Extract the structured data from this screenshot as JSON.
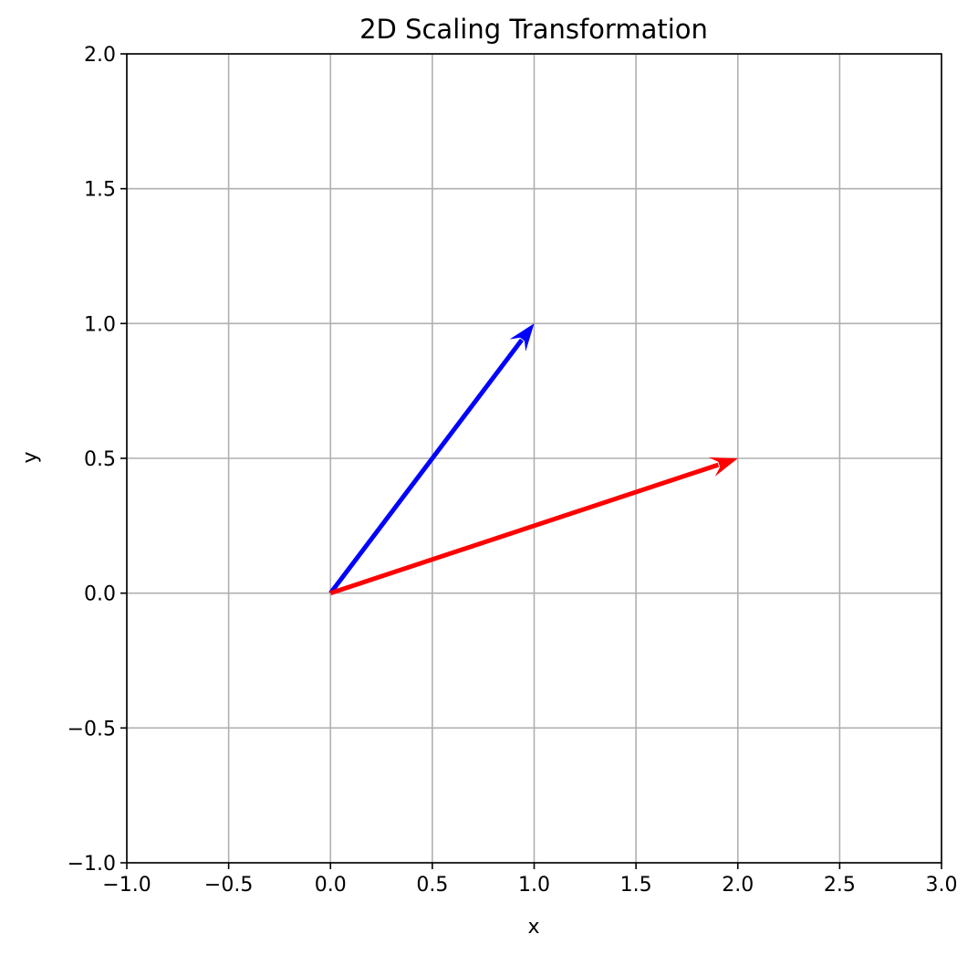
{
  "chart_data": {
    "type": "line",
    "title": "2D Scaling Transformation",
    "xlabel": "x",
    "ylabel": "y",
    "xlim": [
      -1.0,
      3.0
    ],
    "ylim": [
      -1.0,
      2.0
    ],
    "grid": true,
    "x_ticks": [
      -1.0,
      -0.5,
      0.0,
      0.5,
      1.0,
      1.5,
      2.0,
      2.5,
      3.0
    ],
    "x_tick_labels": [
      "−1.0",
      "−0.5",
      "0.0",
      "0.5",
      "1.0",
      "1.5",
      "2.0",
      "2.5",
      "3.0"
    ],
    "y_ticks": [
      -1.0,
      -0.5,
      0.0,
      0.5,
      1.0,
      1.5,
      2.0
    ],
    "y_tick_labels": [
      "−1.0",
      "−0.5",
      "0.0",
      "0.5",
      "1.0",
      "1.5",
      "2.0"
    ],
    "vectors": [
      {
        "start": [
          0,
          0
        ],
        "end": [
          1.0,
          1.0
        ],
        "color": "#0000ff"
      },
      {
        "start": [
          0,
          0
        ],
        "end": [
          2.0,
          0.5
        ],
        "color": "#ff0000"
      }
    ]
  }
}
